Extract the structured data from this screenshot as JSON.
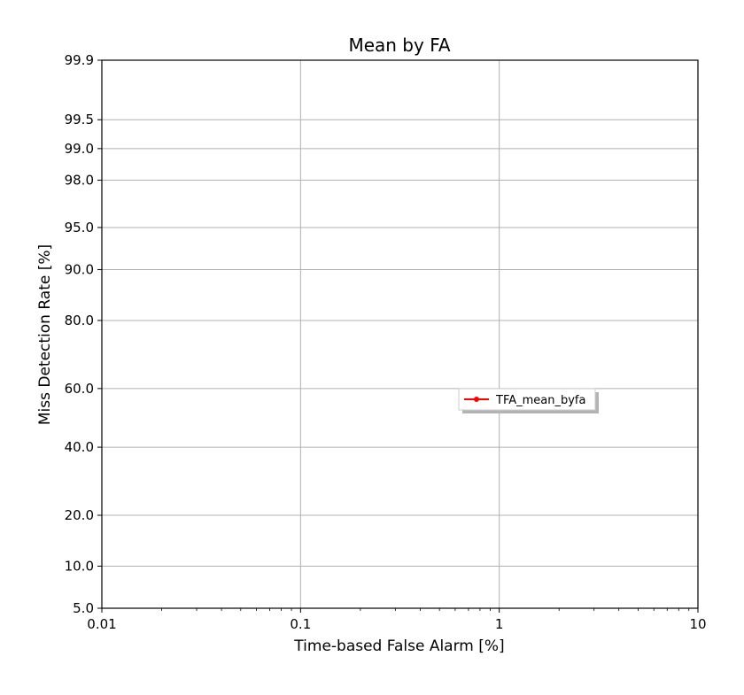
{
  "chart_data": {
    "type": "line",
    "title": "Mean by FA",
    "xlabel": "Time-based False Alarm [%]",
    "ylabel": "Miss Detection Rate [%]",
    "xscale": "log",
    "yscale": "normal-deviate",
    "xlim": [
      0.01,
      10
    ],
    "ylim": [
      5.0,
      99.9
    ],
    "x_ticks": [
      0.01,
      0.1,
      1,
      10
    ],
    "x_tick_labels": [
      "0.01",
      "0.1",
      "1",
      "10"
    ],
    "y_ticks": [
      5.0,
      10.0,
      20.0,
      40.0,
      60.0,
      80.0,
      90.0,
      95.0,
      98.0,
      99.0,
      99.5,
      99.9
    ],
    "y_tick_labels": [
      "5.0",
      "10.0",
      "20.0",
      "40.0",
      "60.0",
      "80.0",
      "90.0",
      "95.0",
      "98.0",
      "99.0",
      "99.5",
      "99.9"
    ],
    "grid": true,
    "legend_position": "center-right",
    "series": [
      {
        "name": "TFA_mean_byfa",
        "color": "#ff0000",
        "marker": "circle",
        "x": [],
        "y": []
      }
    ]
  }
}
